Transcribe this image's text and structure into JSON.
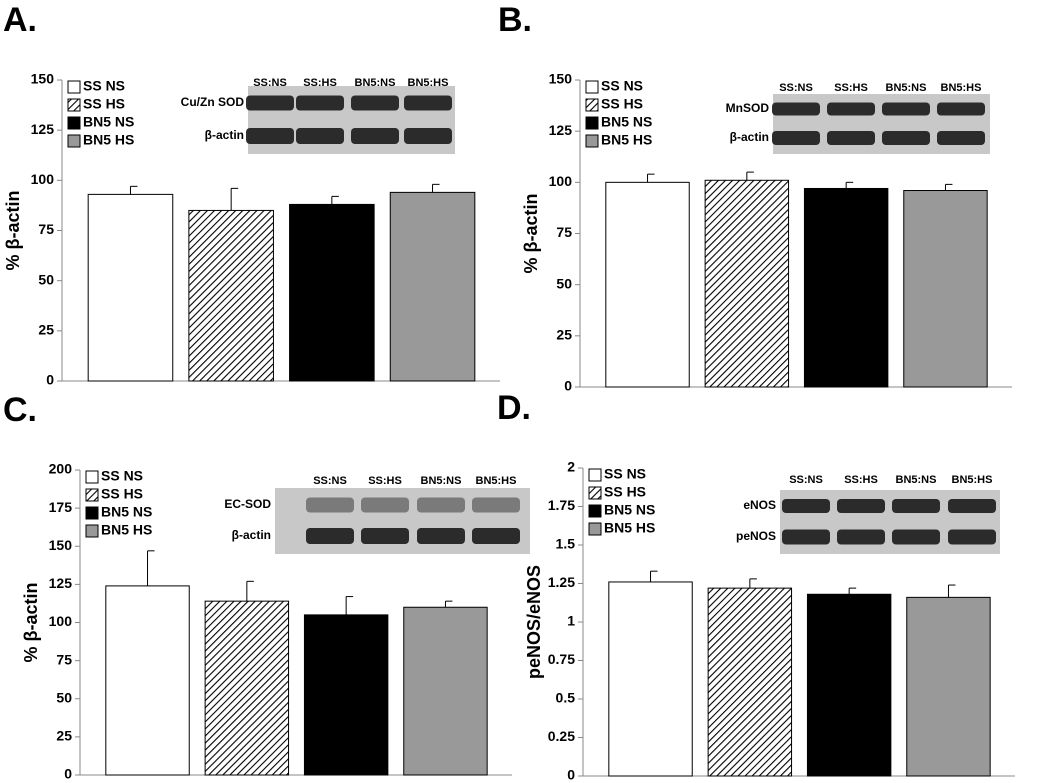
{
  "chart_data": [
    {
      "type": "bar",
      "panel": "A.",
      "ylabel": "% β-actin",
      "ylim": [
        0,
        150
      ],
      "yticks": [
        0,
        25,
        50,
        75,
        100,
        125,
        150
      ],
      "series": [
        {
          "name": "SS NS",
          "color": "#ffffff",
          "values": [
            93
          ],
          "errors": [
            4
          ]
        },
        {
          "name": "SS HS",
          "color": "#ffffff",
          "pattern": "hatch",
          "values": [
            85
          ],
          "errors": [
            11
          ]
        },
        {
          "name": "BN5 NS",
          "color": "#000000",
          "values": [
            88
          ],
          "errors": [
            4
          ]
        },
        {
          "name": "BN5 HS",
          "color": "#999999",
          "values": [
            94
          ],
          "errors": [
            4
          ]
        }
      ],
      "blot": {
        "lanes": [
          "SS:NS",
          "SS:HS",
          "BN5:NS",
          "BN5:HS"
        ],
        "rows": [
          "Cu/Zn SOD",
          "β-actin"
        ]
      }
    },
    {
      "type": "bar",
      "panel": "B.",
      "ylabel": "% β-actin",
      "ylim": [
        0,
        150
      ],
      "yticks": [
        0,
        25,
        50,
        75,
        100,
        125,
        150
      ],
      "series": [
        {
          "name": "SS NS",
          "color": "#ffffff",
          "values": [
            100
          ],
          "errors": [
            4
          ]
        },
        {
          "name": "SS HS",
          "color": "#ffffff",
          "pattern": "hatch",
          "values": [
            101
          ],
          "errors": [
            4
          ]
        },
        {
          "name": "BN5 NS",
          "color": "#000000",
          "values": [
            97
          ],
          "errors": [
            3
          ]
        },
        {
          "name": "BN5 HS",
          "color": "#999999",
          "values": [
            96
          ],
          "errors": [
            3
          ]
        }
      ],
      "blot": {
        "lanes": [
          "SS:NS",
          "SS:HS",
          "BN5:NS",
          "BN5:HS"
        ],
        "rows": [
          "MnSOD",
          "β-actin"
        ]
      }
    },
    {
      "type": "bar",
      "panel": "C.",
      "ylabel": "% β-actin",
      "ylim": [
        0,
        200
      ],
      "yticks": [
        0,
        25,
        50,
        75,
        100,
        125,
        150,
        175,
        200
      ],
      "series": [
        {
          "name": "SS NS",
          "color": "#ffffff",
          "values": [
            124
          ],
          "errors": [
            23
          ]
        },
        {
          "name": "SS HS",
          "color": "#ffffff",
          "pattern": "hatch",
          "values": [
            114
          ],
          "errors": [
            13
          ]
        },
        {
          "name": "BN5 NS",
          "color": "#000000",
          "values": [
            105
          ],
          "errors": [
            12
          ]
        },
        {
          "name": "BN5 HS",
          "color": "#999999",
          "values": [
            110
          ],
          "errors": [
            4
          ]
        }
      ],
      "blot": {
        "lanes": [
          "SS:NS",
          "SS:HS",
          "BN5:NS",
          "BN5:HS"
        ],
        "rows": [
          "EC-SOD",
          "β-actin"
        ]
      }
    },
    {
      "type": "bar",
      "panel": "D.",
      "ylabel": "peNOS/eNOS",
      "ylim": [
        0,
        2
      ],
      "yticks": [
        0,
        0.25,
        0.5,
        0.75,
        1,
        1.25,
        1.5,
        1.75,
        2
      ],
      "series": [
        {
          "name": "SS NS",
          "color": "#ffffff",
          "values": [
            1.26
          ],
          "errors": [
            0.07
          ]
        },
        {
          "name": "SS HS",
          "color": "#ffffff",
          "pattern": "hatch",
          "values": [
            1.22
          ],
          "errors": [
            0.06
          ]
        },
        {
          "name": "BN5 NS",
          "color": "#000000",
          "values": [
            1.18
          ],
          "errors": [
            0.04
          ]
        },
        {
          "name": "BN5 HS",
          "color": "#999999",
          "values": [
            1.16
          ],
          "errors": [
            0.08
          ]
        }
      ],
      "blot": {
        "lanes": [
          "SS:NS",
          "SS:HS",
          "BN5:NS",
          "BN5:HS"
        ],
        "rows": [
          "eNOS",
          "peNOS"
        ]
      }
    }
  ]
}
